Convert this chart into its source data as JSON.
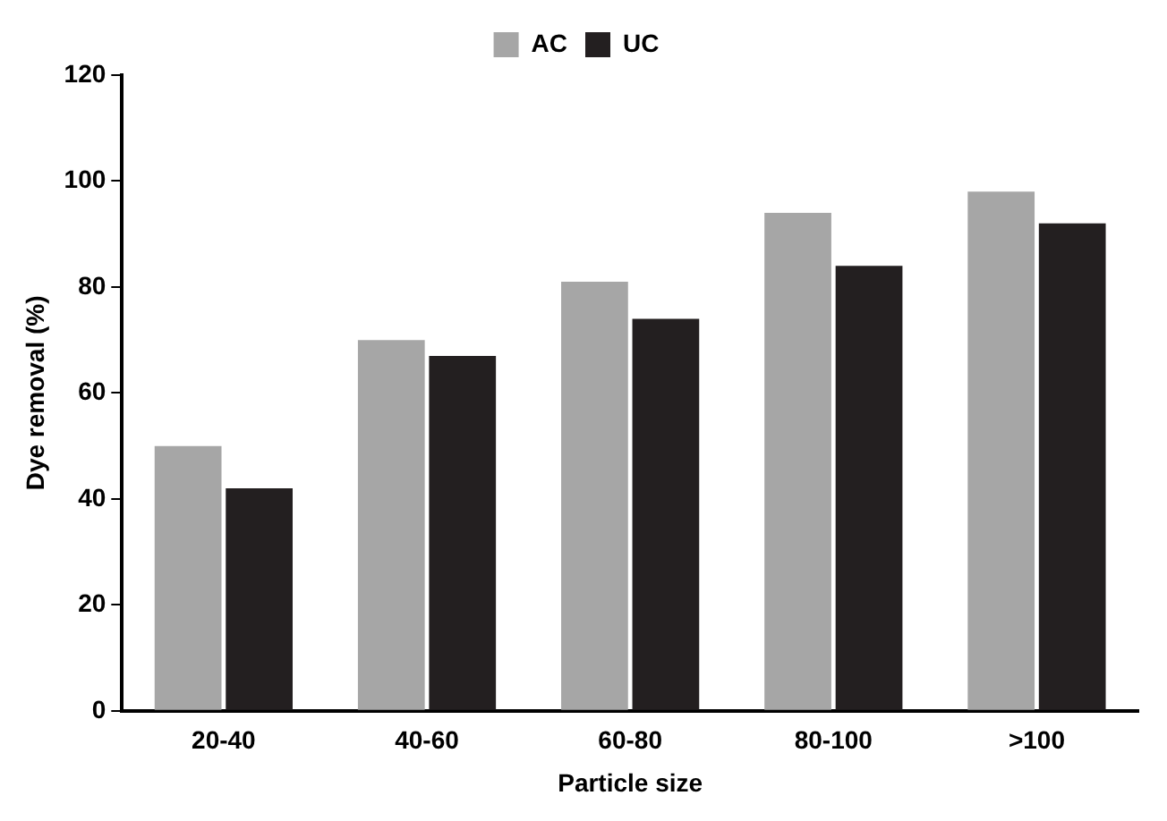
{
  "chart_data": {
    "type": "bar",
    "xlabel": "Particle size",
    "ylabel": "Dye removal (%)",
    "categories": [
      "20-40",
      "40-60",
      "60-80",
      "80-100",
      ">100"
    ],
    "series": [
      {
        "name": "AC",
        "color": "#a6a6a6",
        "values": [
          50,
          70,
          81,
          94,
          98
        ]
      },
      {
        "name": "UC",
        "color": "#231f20",
        "values": [
          42,
          67,
          74,
          84,
          92
        ]
      }
    ],
    "ylim": [
      0,
      120
    ],
    "yticks": [
      0,
      20,
      40,
      60,
      80,
      100,
      120
    ],
    "grid": false,
    "legend": "top"
  }
}
